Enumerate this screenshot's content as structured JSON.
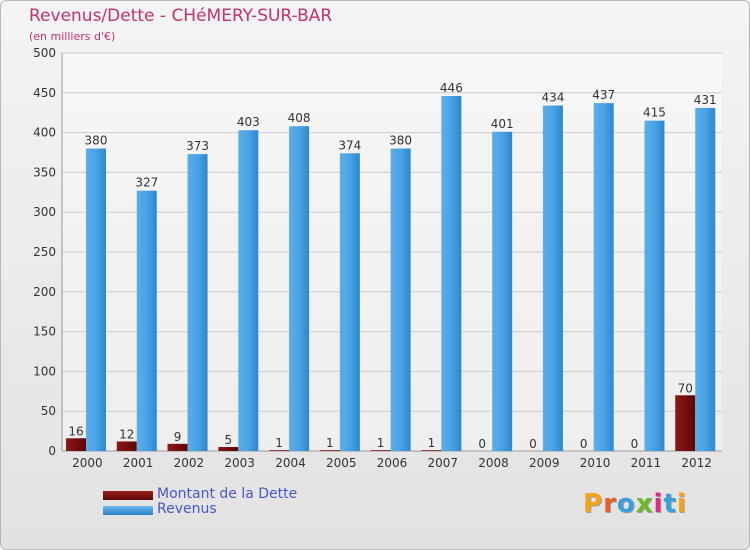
{
  "title": "Revenus/Dette - CHéMERY-SUR-BAR",
  "subtitle": "(en milliers d'€)",
  "logo_text": "Proxiti",
  "colors": {
    "title": "#c0336a",
    "legend_text": "#4a55c9",
    "dette": "#7a0f0f",
    "revenus": "#3f9ae0",
    "grid": "#cccccc",
    "axis_text": "#333333"
  },
  "legend": [
    {
      "label": "Montant de la Dette",
      "color": "#7a0f0f"
    },
    {
      "label": "Revenus",
      "color": "#3f9ae0"
    }
  ],
  "chart_data": {
    "type": "bar",
    "title": "Revenus/Dette - CHéMERY-SUR-BAR",
    "subtitle": "(en milliers d'€)",
    "xlabel": "",
    "ylabel": "",
    "ylim": [
      0,
      500
    ],
    "yticks": [
      0,
      50,
      100,
      150,
      200,
      250,
      300,
      350,
      400,
      450,
      500
    ],
    "grid": true,
    "legend_position": "bottom-left",
    "categories": [
      "2000",
      "2001",
      "2002",
      "2003",
      "2004",
      "2005",
      "2006",
      "2007",
      "2008",
      "2009",
      "2010",
      "2011",
      "2012"
    ],
    "series": [
      {
        "name": "Montant de la Dette",
        "values": [
          16,
          12,
          9,
          5,
          1,
          1,
          1,
          1,
          0,
          0,
          0,
          0,
          70
        ]
      },
      {
        "name": "Revenus",
        "values": [
          380,
          327,
          373,
          403,
          408,
          374,
          380,
          446,
          401,
          434,
          437,
          415,
          431
        ]
      }
    ]
  }
}
